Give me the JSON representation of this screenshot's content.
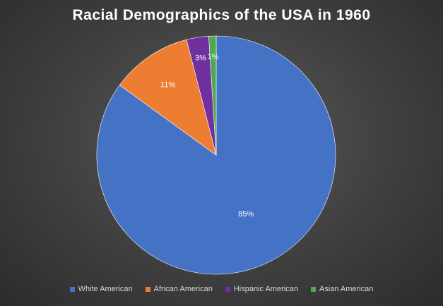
{
  "chart_data": {
    "type": "pie",
    "title": "Racial Demographics of the USA in 1960",
    "categories": [
      "White American",
      "African American",
      "Hispanic American",
      "Asian American"
    ],
    "values": [
      85,
      11,
      3,
      1
    ],
    "labels": [
      "85%",
      "11%",
      "3%",
      "1%"
    ],
    "colors": [
      "#4472c4",
      "#ed7d31",
      "#7030a0",
      "#4ea952"
    ],
    "legend_position": "bottom"
  }
}
